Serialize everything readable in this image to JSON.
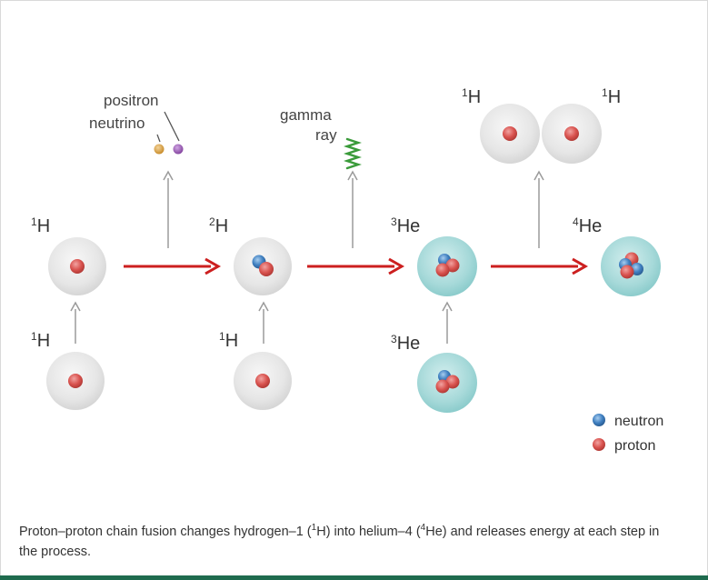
{
  "labels": {
    "h1": "H",
    "h1_mass": "1",
    "h2": "H",
    "h2_mass": "2",
    "he3": "He",
    "he3_mass": "3",
    "he4": "He",
    "he4_mass": "4"
  },
  "products": {
    "positron": "positron",
    "neutrino": "neutrino",
    "gamma_line1": "gamma",
    "gamma_line2": "ray"
  },
  "legend": {
    "neutron": "neutron",
    "proton": "proton"
  },
  "caption": {
    "part1": "Proton–proton chain fusion changes hydrogen–1 (",
    "sup1": "1",
    "part2": "H) into helium–4 (",
    "sup2": "4",
    "part3": "He) and releases energy at each step in the process."
  },
  "colors": {
    "proton": "#d9534f",
    "neutron": "#3f7fc0",
    "arrow_red": "#cc1f1f",
    "arrow_gray": "#9a9a9a",
    "hydrogen_shell": "#e4e4e4",
    "helium_shell": "#9fd6d6",
    "gamma": "#3a9b3a",
    "positron_dot": "#d8a040",
    "neutrino_dot": "#9a58b8",
    "footer_bar": "#1f6b4e"
  }
}
